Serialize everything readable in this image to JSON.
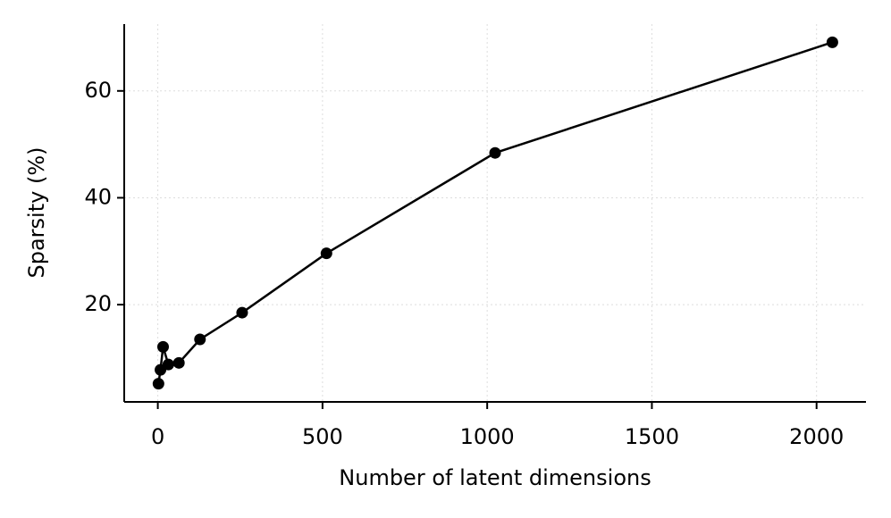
{
  "chart_data": {
    "type": "line",
    "xlabel": "Number of latent dimensions",
    "ylabel": "Sparsity (%)",
    "x": [
      2,
      8,
      16,
      32,
      64,
      128,
      256,
      512,
      1024,
      2048
    ],
    "series": [
      {
        "color": "#000000",
        "values": [
          5.2,
          7.8,
          12.1,
          8.8,
          9.1,
          13.5,
          18.5,
          29.6,
          48.4,
          69.1
        ]
      }
    ],
    "xlim": [
      -102,
      2150
    ],
    "ylim": [
      1.8,
      72.5
    ],
    "xticks": [
      0,
      500,
      1000,
      1500,
      2000
    ],
    "yticks": [
      20,
      40,
      60
    ],
    "grid": true
  }
}
